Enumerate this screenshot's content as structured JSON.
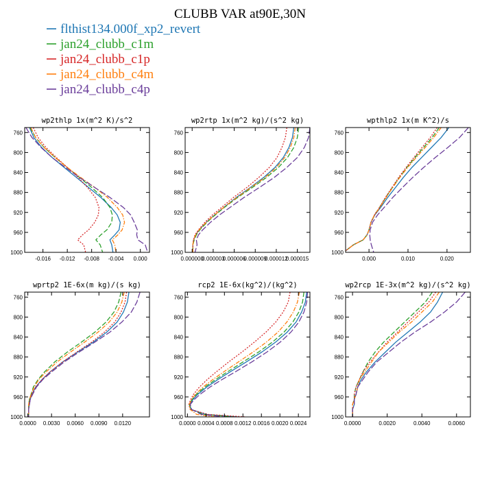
{
  "figure_title": "CLUBB VAR at90E,30N",
  "legend": [
    {
      "label": "flthist134.000f_xp2_revert",
      "color": "#1f77b4",
      "dash": "solid"
    },
    {
      "label": "jan24_clubb_c1m",
      "color": "#2ca02c",
      "dash": "dash"
    },
    {
      "label": "jan24_clubb_c1p",
      "color": "#d62728",
      "dash": "dot"
    },
    {
      "label": "jan24_clubb_c4m",
      "color": "#ff7f0e",
      "dash": "dashdot"
    },
    {
      "label": "jan24_clubb_c4p",
      "color": "#6a3d9a",
      "dash": "longdash"
    }
  ],
  "chart_data": [
    {
      "type": "line",
      "title": "wp2thlp  1x(m^2 K)/s^2",
      "xlim": [
        -0.019,
        0.0015
      ],
      "ylim": [
        750,
        1000
      ],
      "y_inverted": true,
      "x_ticks": [
        -0.016,
        -0.012,
        -0.008,
        -0.004,
        0.0
      ],
      "x_tick_labels": [
        "-0.016",
        "-0.012",
        "-0.008",
        "-0.004",
        "0.000"
      ],
      "y_ticks": [
        760,
        800,
        840,
        880,
        920,
        960,
        1000
      ],
      "y_tick_labels": [
        "760",
        "800",
        "840",
        "880",
        "920",
        "960",
        "1000"
      ],
      "y": [
        750,
        770,
        790,
        810,
        830,
        850,
        870,
        890,
        910,
        925,
        940,
        955,
        965,
        975,
        985,
        1000
      ],
      "series": [
        {
          "x": [
            -0.0182,
            -0.0175,
            -0.0162,
            -0.0145,
            -0.0125,
            -0.0105,
            -0.0085,
            -0.0065,
            -0.0048,
            -0.0038,
            -0.0033,
            -0.0035,
            -0.0042,
            -0.005,
            -0.0047,
            -0.0045
          ]
        },
        {
          "x": [
            -0.0181,
            -0.0172,
            -0.0158,
            -0.014,
            -0.012,
            -0.01,
            -0.008,
            -0.0062,
            -0.005,
            -0.0046,
            -0.0047,
            -0.0055,
            -0.0065,
            -0.0073,
            -0.0066,
            -0.0062
          ]
        },
        {
          "x": [
            -0.0176,
            -0.0168,
            -0.0155,
            -0.0138,
            -0.012,
            -0.0102,
            -0.0087,
            -0.0074,
            -0.0068,
            -0.0069,
            -0.0075,
            -0.0085,
            -0.0095,
            -0.0103,
            -0.0093,
            -0.009
          ]
        },
        {
          "x": [
            -0.018,
            -0.0172,
            -0.0158,
            -0.014,
            -0.012,
            -0.0098,
            -0.0075,
            -0.0054,
            -0.0038,
            -0.0029,
            -0.0026,
            -0.003,
            -0.0037,
            -0.0046,
            -0.0042,
            -0.004
          ]
        },
        {
          "x": [
            -0.0188,
            -0.0178,
            -0.0163,
            -0.0145,
            -0.0123,
            -0.01,
            -0.0075,
            -0.005,
            -0.0028,
            -0.0016,
            -0.001,
            -0.0005,
            -0.0006,
            -0.0004,
            0.0008,
            0.0012
          ]
        }
      ]
    },
    {
      "type": "line",
      "title": "wp2rtp  1x(m^2 kg)/(s^2 kg)",
      "xlim": [
        -1e-06,
        1.68e-05
      ],
      "ylim": [
        750,
        1000
      ],
      "y_inverted": true,
      "x_ticks": [
        0.0,
        3e-06,
        6e-06,
        9e-06,
        1.2e-05,
        1.5e-05
      ],
      "x_tick_labels": [
        "0.000000",
        "0.000003",
        "0.000006",
        "0.000009",
        "0.000012",
        "0.000015"
      ],
      "y_ticks": [
        760,
        800,
        840,
        880,
        920,
        960,
        1000
      ],
      "y_tick_labels": [
        "760",
        "800",
        "840",
        "880",
        "920",
        "960",
        "1000"
      ],
      "y": [
        750,
        770,
        790,
        810,
        830,
        850,
        870,
        890,
        910,
        925,
        940,
        955,
        965,
        975,
        985,
        1000
      ],
      "series": [
        {
          "x": [
            1.45e-05,
            1.43e-05,
            1.38e-05,
            1.3e-05,
            1.18e-05,
            1.02e-05,
            8.3e-06,
            6.3e-06,
            4.5e-06,
            3.2e-06,
            2e-06,
            1e-06,
            5e-07,
            2e-07,
            1e-07,
            1e-07
          ]
        },
        {
          "x": [
            1.52e-05,
            1.5e-05,
            1.45e-05,
            1.36e-05,
            1.23e-05,
            1.06e-05,
            8.6e-06,
            6.5e-06,
            4.6e-06,
            3.3e-06,
            2.1e-06,
            1.1e-06,
            6e-07,
            3e-07,
            1e-07,
            1e-07
          ]
        },
        {
          "x": [
            1.35e-05,
            1.33e-05,
            1.28e-05,
            1.21e-05,
            1.1e-05,
            9.5e-06,
            7.8e-06,
            5.9e-06,
            4.2e-06,
            2.9e-06,
            1.8e-06,
            9e-07,
            4e-07,
            2e-07,
            1e-07,
            1e-07
          ]
        },
        {
          "x": [
            1.47e-05,
            1.45e-05,
            1.4e-05,
            1.32e-05,
            1.2e-05,
            1.04e-05,
            8.4e-06,
            6.4e-06,
            4.5e-06,
            3.2e-06,
            2e-06,
            1e-06,
            5e-07,
            2e-07,
            1e-07,
            1e-07
          ]
        },
        {
          "x": [
            1.68e-05,
            1.66e-05,
            1.6e-05,
            1.5e-05,
            1.35e-05,
            1.17e-05,
            9.6e-06,
            7.4e-06,
            5.4e-06,
            3.9e-06,
            2.6e-06,
            1.5e-06,
            9e-07,
            6e-07,
            7e-07,
            4e-07
          ]
        }
      ]
    },
    {
      "type": "line",
      "title": "wpthlp2  1x(m K^2)/s",
      "xlim": [
        -0.006,
        0.026
      ],
      "ylim": [
        750,
        1000
      ],
      "y_inverted": true,
      "x_ticks": [
        0.0,
        0.01,
        0.02
      ],
      "x_tick_labels": [
        "0.000",
        "0.010",
        "0.020"
      ],
      "y_ticks": [
        760,
        800,
        840,
        880,
        920,
        960,
        1000
      ],
      "y_tick_labels": [
        "760",
        "800",
        "840",
        "880",
        "920",
        "960",
        "1000"
      ],
      "y": [
        750,
        770,
        790,
        810,
        830,
        850,
        870,
        890,
        910,
        925,
        940,
        955,
        965,
        975,
        985,
        1000
      ],
      "series": [
        {
          "x": [
            0.0205,
            0.0185,
            0.016,
            0.0135,
            0.011,
            0.0088,
            0.0068,
            0.0048,
            0.003,
            0.0015,
            0.0005,
            0.0,
            -0.0005,
            -0.0015,
            -0.004,
            -0.0065
          ]
        },
        {
          "x": [
            0.018,
            0.0162,
            0.014,
            0.0118,
            0.0097,
            0.0078,
            0.006,
            0.0043,
            0.0027,
            0.0014,
            0.0005,
            0.0,
            -0.0005,
            -0.0015,
            -0.004,
            -0.0065
          ]
        },
        {
          "x": [
            0.0175,
            0.0157,
            0.0136,
            0.0115,
            0.0095,
            0.0076,
            0.0059,
            0.0042,
            0.0027,
            0.0014,
            0.0005,
            0.0,
            -0.0005,
            -0.0015,
            -0.004,
            -0.0065
          ]
        },
        {
          "x": [
            0.0185,
            0.0166,
            0.0144,
            0.0121,
            0.0099,
            0.0079,
            0.0061,
            0.0044,
            0.0028,
            0.0014,
            0.0005,
            0.0,
            -0.0005,
            -0.0015,
            -0.004,
            -0.0065
          ]
        },
        {
          "x": [
            0.0255,
            0.0232,
            0.0202,
            0.017,
            0.014,
            0.0112,
            0.0086,
            0.0061,
            0.0039,
            0.0022,
            0.0009,
            0.0003,
            0.0002,
            0.0003,
            0.0006,
            0.0012
          ]
        }
      ]
    },
    {
      "type": "line",
      "title": "wprtp2  1E-6x(m kg)/(s kg)",
      "xlim": [
        -0.0004,
        0.0154
      ],
      "ylim": [
        750,
        1000
      ],
      "y_inverted": true,
      "x_ticks": [
        0.0,
        0.003,
        0.006,
        0.009,
        0.012
      ],
      "x_tick_labels": [
        "0.0000",
        "0.0030",
        "0.0060",
        "0.0090",
        "0.0120"
      ],
      "y_ticks": [
        760,
        800,
        840,
        880,
        920,
        960,
        1000
      ],
      "y_tick_labels": [
        "760",
        "800",
        "840",
        "880",
        "920",
        "960",
        "1000"
      ],
      "y": [
        750,
        770,
        790,
        810,
        830,
        850,
        870,
        890,
        910,
        925,
        940,
        955,
        965,
        975,
        985,
        1000
      ],
      "series": [
        {
          "x": [
            0.0128,
            0.0126,
            0.0121,
            0.0113,
            0.01,
            0.0083,
            0.0063,
            0.0044,
            0.0028,
            0.0018,
            0.001,
            0.0005,
            0.0003,
            0.0002,
            0.0001,
            0.0001
          ]
        },
        {
          "x": [
            0.0118,
            0.0115,
            0.0109,
            0.0099,
            0.0085,
            0.0068,
            0.005,
            0.0034,
            0.0021,
            0.0013,
            0.0007,
            0.0004,
            0.0002,
            0.0001,
            0.0001,
            0.0001
          ]
        },
        {
          "x": [
            0.0125,
            0.0123,
            0.0118,
            0.011,
            0.0097,
            0.0081,
            0.0062,
            0.0044,
            0.0028,
            0.0018,
            0.001,
            0.0005,
            0.0003,
            0.0002,
            0.0001,
            0.0001
          ]
        },
        {
          "x": [
            0.0122,
            0.0119,
            0.0113,
            0.0103,
            0.0089,
            0.0072,
            0.0054,
            0.0037,
            0.0023,
            0.0014,
            0.0008,
            0.0004,
            0.0002,
            0.0001,
            0.0001,
            0.0001
          ]
        },
        {
          "x": [
            0.0142,
            0.0138,
            0.0131,
            0.0119,
            0.0104,
            0.0085,
            0.0065,
            0.0046,
            0.003,
            0.0019,
            0.0011,
            0.0006,
            0.0003,
            0.0002,
            0.0001,
            0.0001
          ]
        }
      ]
    },
    {
      "type": "line",
      "title": "rcp2  1E-6x(kg^2)/(kg^2)",
      "xlim": [
        -5e-05,
        0.00265
      ],
      "ylim": [
        750,
        1000
      ],
      "y_inverted": true,
      "x_ticks": [
        0.0,
        0.0004,
        0.0008,
        0.0012,
        0.0016,
        0.002,
        0.0024
      ],
      "x_tick_labels": [
        "0.0000",
        "0.0004",
        "0.0008",
        "0.0012",
        "0.0016",
        "0.0020",
        "0.0024"
      ],
      "y_ticks": [
        760,
        800,
        840,
        880,
        920,
        960,
        1000
      ],
      "y_tick_labels": [
        "760",
        "800",
        "840",
        "880",
        "920",
        "960",
        "1000"
      ],
      "y": [
        750,
        770,
        790,
        810,
        830,
        850,
        870,
        890,
        910,
        925,
        940,
        955,
        965,
        975,
        985,
        995,
        1000
      ],
      "series": [
        {
          "x": [
            0.00258,
            0.00255,
            0.00247,
            0.00235,
            0.00216,
            0.00191,
            0.00161,
            0.00127,
            0.00092,
            0.00066,
            0.00042,
            0.00022,
            0.00012,
            5e-05,
            8e-05,
            0.0004,
            0.0011
          ]
        },
        {
          "x": [
            0.00252,
            0.00249,
            0.00241,
            0.00228,
            0.00209,
            0.00184,
            0.00154,
            0.0012,
            0.00086,
            0.00061,
            0.00038,
            0.00019,
            0.0001,
            4e-05,
            7e-05,
            0.00035,
            0.001
          ]
        },
        {
          "x": [
            0.00222,
            0.00218,
            0.00207,
            0.00191,
            0.0017,
            0.00145,
            0.00118,
            0.00089,
            0.00062,
            0.00043,
            0.00026,
            0.00013,
            7e-05,
            3e-05,
            6e-05,
            0.00045,
            0.00125
          ]
        },
        {
          "x": [
            0.00242,
            0.00238,
            0.00229,
            0.00215,
            0.00196,
            0.00171,
            0.00142,
            0.0011,
            0.00078,
            0.00055,
            0.00034,
            0.00017,
            9e-05,
            4e-05,
            6e-05,
            0.0002,
            0.0006
          ]
        },
        {
          "x": [
            0.0026,
            0.00258,
            0.00252,
            0.00241,
            0.00224,
            0.00201,
            0.00172,
            0.00139,
            0.00103,
            0.00075,
            0.00049,
            0.00027,
            0.00015,
            6e-05,
            9e-05,
            0.0003,
            0.0008
          ]
        }
      ]
    },
    {
      "type": "line",
      "title": "wp2rcp  1E-3x(m^2 kg)/(s^2 kg)",
      "xlim": [
        -0.0004,
        0.0068
      ],
      "ylim": [
        750,
        1000
      ],
      "y_inverted": true,
      "x_ticks": [
        0.0,
        0.002,
        0.004,
        0.006
      ],
      "x_tick_labels": [
        "0.0000",
        "0.0020",
        "0.0040",
        "0.0060"
      ],
      "y_ticks": [
        760,
        800,
        840,
        880,
        920,
        960,
        1000
      ],
      "y_tick_labels": [
        "760",
        "800",
        "840",
        "880",
        "920",
        "960",
        "1000"
      ],
      "y": [
        750,
        770,
        790,
        810,
        830,
        850,
        870,
        890,
        910,
        925,
        940,
        955,
        965,
        975,
        985,
        1000
      ],
      "series": [
        {
          "x": [
            0.0052,
            0.0049,
            0.0045,
            0.0039,
            0.0032,
            0.0025,
            0.0019,
            0.0013,
            0.0008,
            0.0005,
            0.0003,
            0.0002,
            0.0001,
            0.0001,
            0.0,
            0.0
          ]
        },
        {
          "x": [
            0.0046,
            0.0042,
            0.0036,
            0.003,
            0.0024,
            0.0018,
            0.0013,
            0.0009,
            0.0006,
            0.0004,
            0.0002,
            0.0001,
            0.0001,
            0.0,
            0.0,
            0.0
          ]
        },
        {
          "x": [
            0.0048,
            0.0044,
            0.0038,
            0.0032,
            0.0026,
            0.002,
            0.0015,
            0.001,
            0.0006,
            0.0004,
            0.0002,
            0.0001,
            0.0001,
            0.0,
            0.0,
            0.0
          ]
        },
        {
          "x": [
            0.005,
            0.0046,
            0.004,
            0.0034,
            0.0027,
            0.0021,
            0.0015,
            0.0011,
            0.0007,
            0.0004,
            0.0003,
            0.0002,
            0.0001,
            0.0,
            0.0,
            0.0
          ]
        },
        {
          "x": [
            0.0065,
            0.006,
            0.0053,
            0.0045,
            0.0036,
            0.0028,
            0.0021,
            0.0014,
            0.0009,
            0.0006,
            0.0003,
            0.0002,
            0.0001,
            0.0001,
            0.0,
            0.0
          ]
        }
      ]
    }
  ]
}
